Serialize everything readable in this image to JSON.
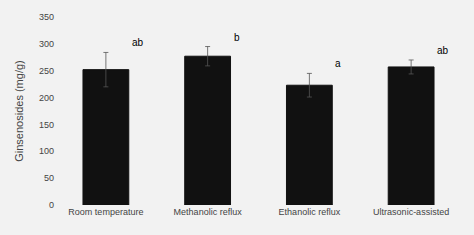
{
  "chart_data": {
    "type": "bar",
    "categories": [
      "Room temperature",
      "Methanolic reflux",
      "Ethanolic reflux",
      "Ultrasonic-assisted"
    ],
    "values": [
      252,
      277,
      223,
      257
    ],
    "errors": [
      32,
      18,
      22,
      13
    ],
    "annotations": [
      "ab",
      "b",
      "a",
      "ab"
    ],
    "color": "#111111",
    "ylabel": "Ginsenosides (mg/g)",
    "ylim": [
      0,
      350
    ],
    "yticks": [
      0,
      50,
      100,
      150,
      200,
      250,
      300,
      350
    ],
    "grid": false
  }
}
